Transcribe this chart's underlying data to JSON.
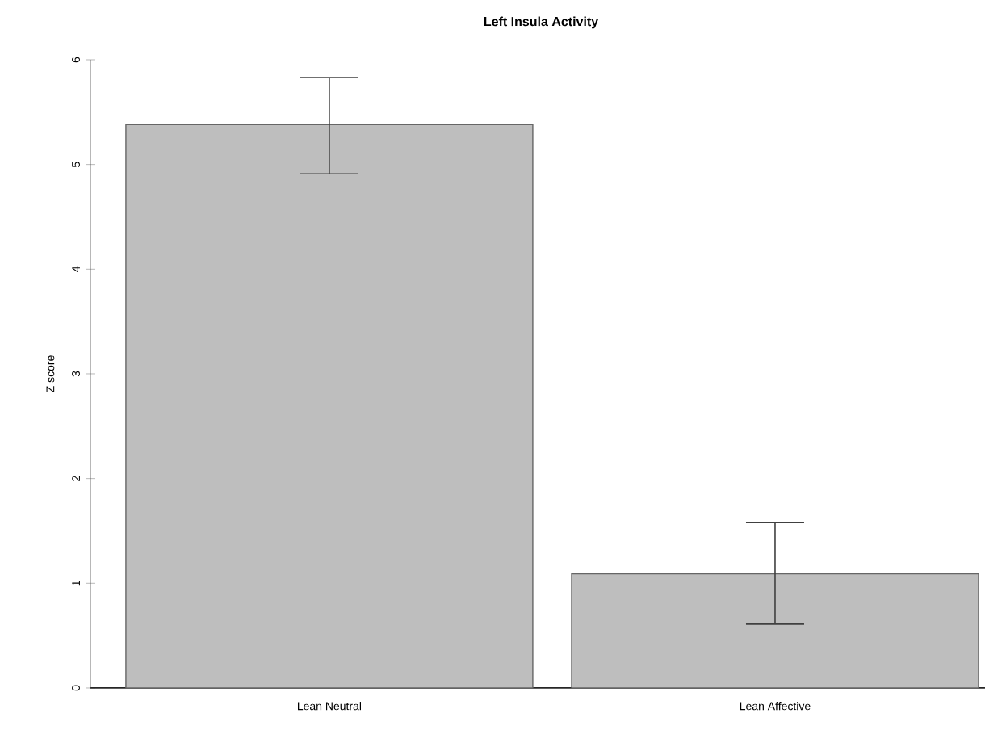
{
  "chart_data": {
    "type": "bar",
    "title": "Left Insula Activity",
    "ylabel": "Z score",
    "categories": [
      "Lean Neutral",
      "Lean Affective"
    ],
    "values": [
      5.38,
      1.09
    ],
    "errors": [
      [
        4.91,
        5.83
      ],
      [
        0.61,
        1.58
      ]
    ],
    "color": "#bebebe",
    "ylim": [
      0,
      6
    ],
    "yticks": [
      0,
      1,
      2,
      3,
      4,
      5,
      6
    ]
  }
}
